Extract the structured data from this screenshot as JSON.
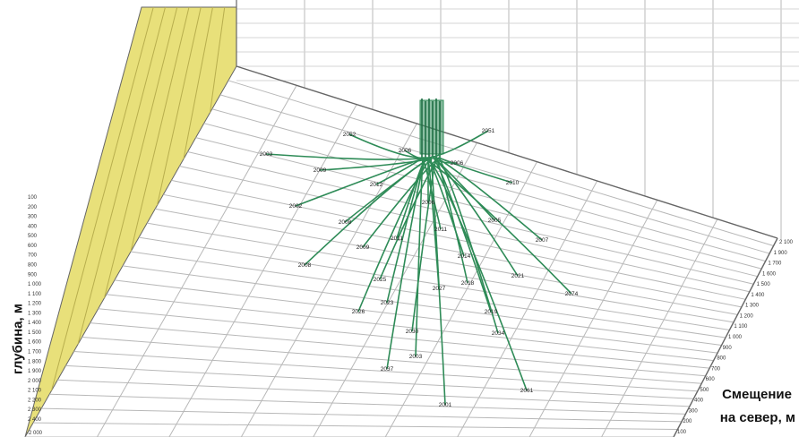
{
  "chart_data": {
    "type": "3d-line",
    "title": "",
    "ylabel": "глубина, м",
    "xlabel_line1": "Смещение",
    "xlabel_line2": "на север, м",
    "colors": {
      "trajectory": "#2e8b57",
      "wall": "#e8e07a",
      "grid": "#b8b8b8",
      "frame": "#666666"
    },
    "depth_ticks": [
      "100",
      "200",
      "300",
      "400",
      "500",
      "600",
      "700",
      "800",
      "900",
      "1 000",
      "1 100",
      "1 200",
      "1 300",
      "1 400",
      "1 500",
      "1 600",
      "1 700",
      "1 800",
      "1 900",
      "2 000",
      "2 100",
      "2 200",
      "2 300",
      "2 400"
    ],
    "north_ticks": [
      "2 100",
      "1 900",
      "1 700",
      "1 600",
      "1 500",
      "1 400",
      "1 300",
      "1 200",
      "1 100",
      "1 000",
      "900",
      "800",
      "700",
      "600",
      "500",
      "400",
      "300",
      "200",
      "100"
    ],
    "bottom_tick": "-2 000",
    "wells": [
      {
        "label": "2051",
        "end": [
          545,
          146
        ]
      },
      {
        "label": "2052",
        "end": [
          390,
          150
        ]
      },
      {
        "label": "2006",
        "end": [
          452,
          168
        ]
      },
      {
        "label": "2003",
        "end": [
          297,
          172
        ]
      },
      {
        "label": "2006",
        "end": [
          510,
          182
        ]
      },
      {
        "label": "2009",
        "end": [
          357,
          190
        ]
      },
      {
        "label": "2010",
        "end": [
          572,
          204
        ]
      },
      {
        "label": "2012",
        "end": [
          420,
          206
        ]
      },
      {
        "label": "2002",
        "end": [
          330,
          230
        ]
      },
      {
        "label": "2006",
        "end": [
          478,
          226
        ]
      },
      {
        "label": "2008",
        "end": [
          385,
          248
        ]
      },
      {
        "label": "2005",
        "end": [
          552,
          246
        ]
      },
      {
        "label": "2007",
        "end": [
          605,
          268
        ]
      },
      {
        "label": "2009",
        "end": [
          405,
          276
        ]
      },
      {
        "label": "2011",
        "end": [
          492,
          256
        ]
      },
      {
        "label": "2011",
        "end": [
          443,
          266
        ]
      },
      {
        "label": "2014",
        "end": [
          518,
          286
        ]
      },
      {
        "label": "2008",
        "end": [
          340,
          296
        ]
      },
      {
        "label": "2021",
        "end": [
          578,
          308
        ]
      },
      {
        "label": "2018",
        "end": [
          522,
          316
        ]
      },
      {
        "label": "2025",
        "end": [
          424,
          312
        ]
      },
      {
        "label": "2074",
        "end": [
          638,
          328
        ]
      },
      {
        "label": "2023",
        "end": [
          432,
          338
        ]
      },
      {
        "label": "2027",
        "end": [
          490,
          322
        ]
      },
      {
        "label": "2026",
        "end": [
          400,
          348
        ]
      },
      {
        "label": "2019",
        "end": [
          548,
          348
        ]
      },
      {
        "label": "2030",
        "end": [
          460,
          370
        ]
      },
      {
        "label": "2034",
        "end": [
          556,
          372
        ]
      },
      {
        "label": "2003",
        "end": [
          464,
          398
        ]
      },
      {
        "label": "2037",
        "end": [
          432,
          412
        ]
      },
      {
        "label": "2061",
        "end": [
          588,
          436
        ]
      },
      {
        "label": "2001",
        "end": [
          497,
          452
        ]
      }
    ]
  }
}
